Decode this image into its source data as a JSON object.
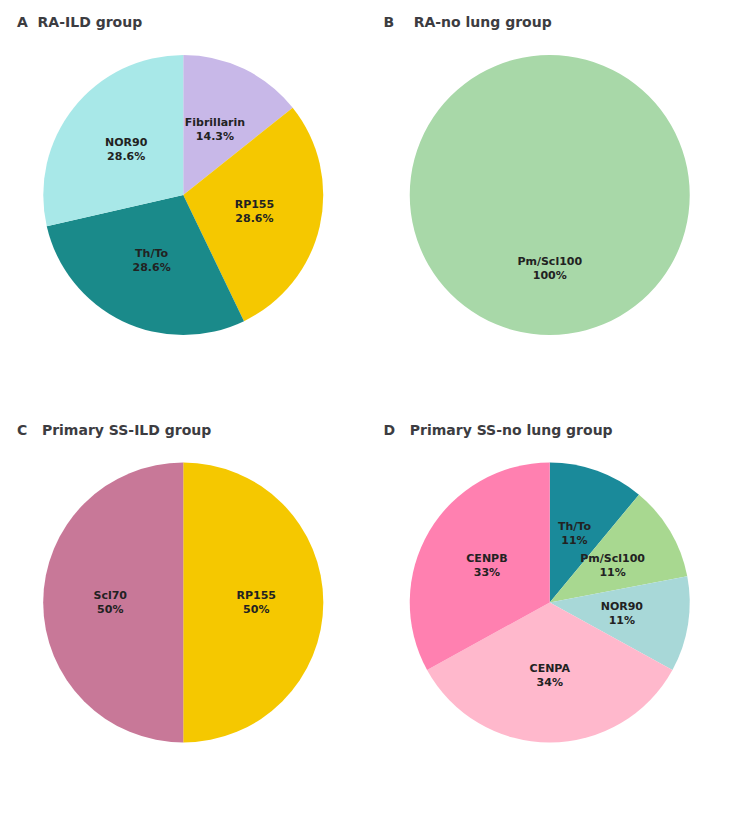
{
  "chart_data": [
    {
      "type": "pie",
      "title": "A  RA-ILD group",
      "categories": [
        "Fibrillarin\n14.3%",
        "RP155\n28.6%",
        "Th/To\n28.6%",
        "NOR90\n28.6%"
      ],
      "values": [
        14.3,
        28.6,
        28.6,
        28.6
      ],
      "colors": [
        "#c8b8e8",
        "#f5c800",
        "#1a8a8a",
        "#a8e8e8"
      ]
    },
    {
      "type": "pie",
      "title": "B    RA-no lung group",
      "categories": [
        "Pm/Scl100\n100%"
      ],
      "values": [
        100
      ],
      "colors": [
        "#a8d8a8"
      ]
    },
    {
      "type": "pie",
      "title": "C   Primary SS-ILD group",
      "categories": [
        "RP155\n50%",
        "Scl70\n50%"
      ],
      "values": [
        50,
        50
      ],
      "colors": [
        "#f5c800",
        "#c87898"
      ]
    },
    {
      "type": "pie",
      "title": "D   Primary SS-no lung group",
      "categories": [
        "Th/To\n11%",
        "Pm/Scl100\n11%",
        "NOR90\n11%",
        "CENPA\n34%",
        "CENPB\n33%"
      ],
      "values": [
        11,
        11,
        11,
        34,
        33
      ],
      "colors": [
        "#1a8a9a",
        "#a8d890",
        "#a8d8d8",
        "#ffb8cc",
        "#ff80b0"
      ]
    }
  ]
}
